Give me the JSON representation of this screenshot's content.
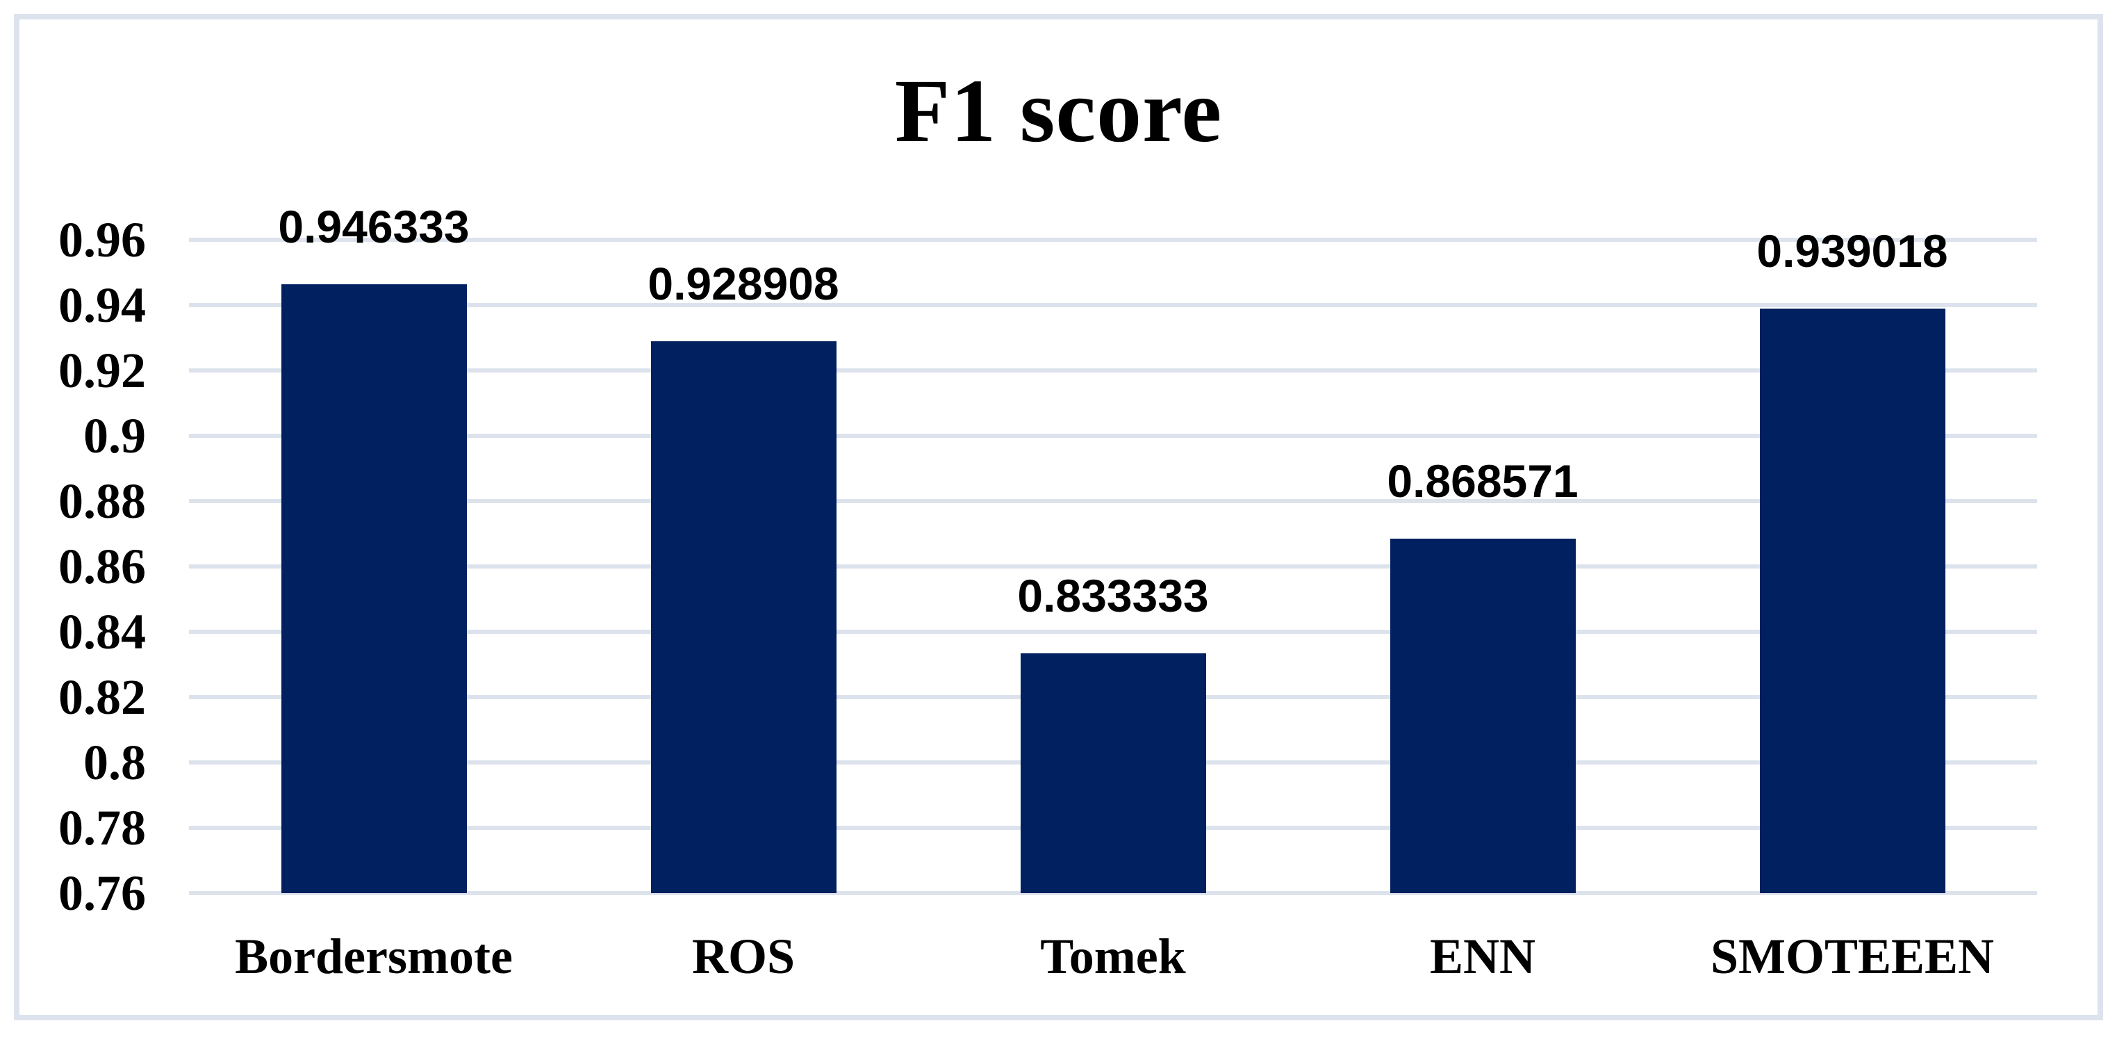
{
  "chart_data": {
    "type": "bar",
    "title": "F1 score",
    "categories": [
      "Bordersmote",
      "ROS",
      "Tomek",
      "ENN",
      "SMOTEEEN"
    ],
    "values": [
      0.946333,
      0.928908,
      0.833333,
      0.868571,
      0.939018
    ],
    "value_labels": [
      "0.946333",
      "0.928908",
      "0.833333",
      "0.868571",
      "0.939018"
    ],
    "xlabel": "",
    "ylabel": "",
    "ylim": [
      0.76,
      0.96
    ],
    "ytick_step": 0.02,
    "yticks_top_to_bottom": [
      "0.96",
      "0.94",
      "0.92",
      "0.9",
      "0.88",
      "0.86",
      "0.84",
      "0.82",
      "0.8",
      "0.78",
      "0.76"
    ],
    "grid": "horizontal",
    "legend": "none",
    "colors": {
      "bar_fill": "#002060",
      "gridline": "#dde3ec",
      "figure_border": "#dde3ec",
      "text": "#000000",
      "background": "#ffffff"
    }
  }
}
